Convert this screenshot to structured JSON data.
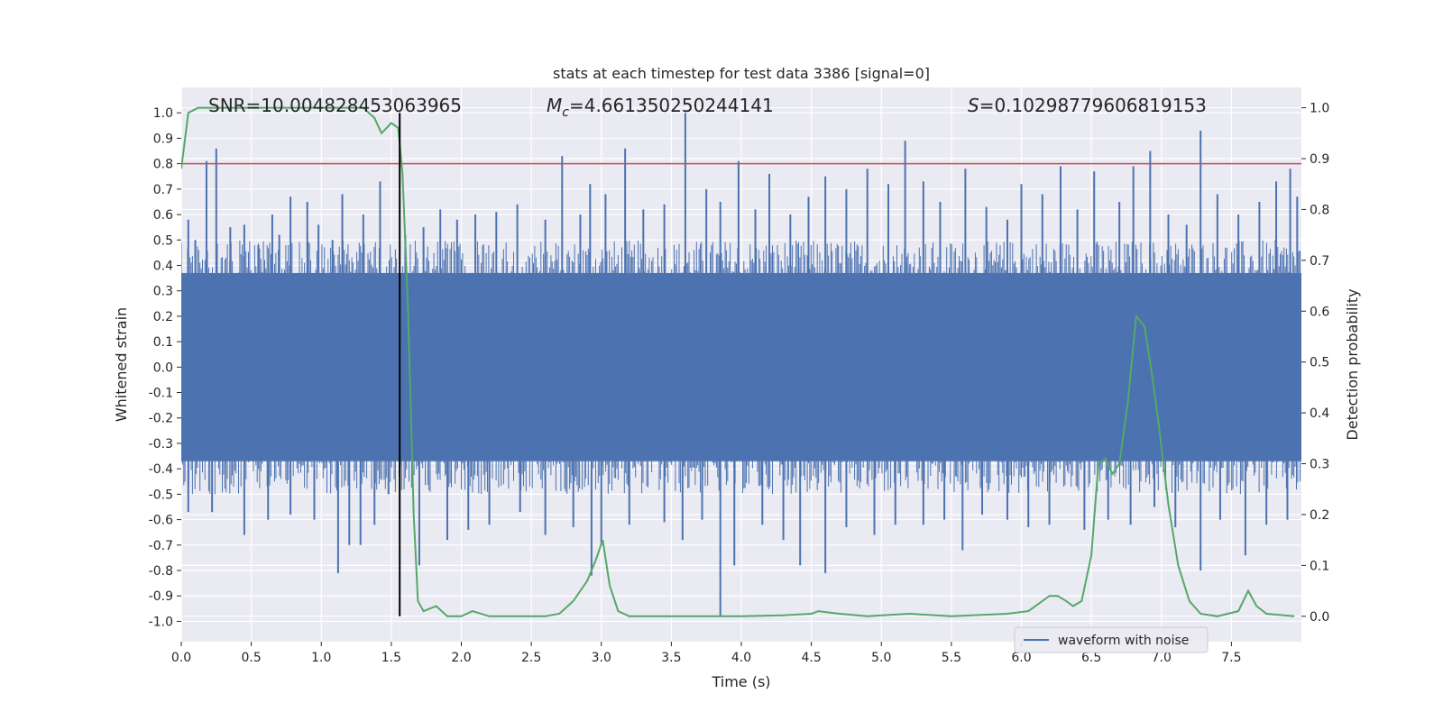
{
  "chart_data": {
    "type": "line",
    "title": "stats at each timestep for test data 3386 [signal=0]",
    "xlabel": "Time (s)",
    "ylabel_left": "Whitened strain",
    "ylabel_right": "Detection probability",
    "xlim": [
      0.0,
      8.0
    ],
    "ylim_left": [
      -1.08,
      1.1
    ],
    "ylim_right": [
      -0.05,
      1.04
    ],
    "x_ticks": [
      "0.0",
      "0.5",
      "1.0",
      "1.5",
      "2.0",
      "2.5",
      "3.0",
      "3.5",
      "4.0",
      "4.5",
      "5.0",
      "5.5",
      "6.0",
      "6.5",
      "7.0",
      "7.5"
    ],
    "x_tick_values": [
      0.0,
      0.5,
      1.0,
      1.5,
      2.0,
      2.5,
      3.0,
      3.5,
      4.0,
      4.5,
      5.0,
      5.5,
      6.0,
      6.5,
      7.0,
      7.5
    ],
    "y_left_ticks": [
      "1.0",
      "0.9",
      "0.8",
      "0.7",
      "0.6",
      "0.5",
      "0.4",
      "0.3",
      "0.2",
      "0.1",
      "0.0",
      "-0.1",
      "-0.2",
      "-0.3",
      "-0.4",
      "-0.5",
      "-0.6",
      "-0.7",
      "-0.8",
      "-0.9",
      "-1.0"
    ],
    "y_left_tick_values": [
      1.0,
      0.9,
      0.8,
      0.7,
      0.6,
      0.5,
      0.4,
      0.3,
      0.2,
      0.1,
      0.0,
      -0.1,
      -0.2,
      -0.3,
      -0.4,
      -0.5,
      -0.6,
      -0.7,
      -0.8,
      -0.9,
      -1.0
    ],
    "y_right_ticks": [
      "1.0",
      "0.9",
      "0.8",
      "0.7",
      "0.6",
      "0.5",
      "0.4",
      "0.3",
      "0.2",
      "0.1",
      "0.0"
    ],
    "y_right_tick_values": [
      1.0,
      0.9,
      0.8,
      0.7,
      0.6,
      0.5,
      0.4,
      0.3,
      0.2,
      0.1,
      0.0
    ],
    "annotations": {
      "snr": "SNR=10.004828453063965",
      "mc_symbol": "M",
      "mc_sub": "c",
      "mc_value": "=4.661350250244141",
      "s_symbol": "S",
      "s_value": "=0.10298779606819153"
    },
    "legend": [
      {
        "label": "waveform with noise",
        "color": "#4c72b0"
      }
    ],
    "waveform": {
      "name": "waveform with noise",
      "axis": "left",
      "color": "#4c72b0",
      "fill_band_low": -0.37,
      "fill_band_high": 0.37,
      "spikes_up": [
        [
          0.05,
          0.58
        ],
        [
          0.1,
          0.5
        ],
        [
          0.18,
          0.81
        ],
        [
          0.25,
          0.86
        ],
        [
          0.35,
          0.55
        ],
        [
          0.45,
          0.56
        ],
        [
          0.55,
          0.48
        ],
        [
          0.65,
          0.6
        ],
        [
          0.7,
          0.52
        ],
        [
          0.78,
          0.67
        ],
        [
          0.9,
          0.65
        ],
        [
          0.98,
          0.56
        ],
        [
          1.08,
          0.5
        ],
        [
          1.15,
          0.68
        ],
        [
          1.3,
          0.6
        ],
        [
          1.42,
          0.73
        ],
        [
          1.6,
          0.52
        ],
        [
          1.73,
          0.55
        ],
        [
          1.85,
          0.62
        ],
        [
          1.97,
          0.58
        ],
        [
          2.1,
          0.6
        ],
        [
          2.25,
          0.61
        ],
        [
          2.4,
          0.64
        ],
        [
          2.6,
          0.58
        ],
        [
          2.72,
          0.83
        ],
        [
          2.85,
          0.6
        ],
        [
          2.92,
          0.72
        ],
        [
          3.03,
          0.68
        ],
        [
          3.17,
          0.86
        ],
        [
          3.3,
          0.62
        ],
        [
          3.45,
          0.64
        ],
        [
          3.6,
          1.0
        ],
        [
          3.75,
          0.7
        ],
        [
          3.85,
          0.65
        ],
        [
          3.98,
          0.81
        ],
        [
          4.1,
          0.62
        ],
        [
          4.2,
          0.76
        ],
        [
          4.35,
          0.6
        ],
        [
          4.48,
          0.67
        ],
        [
          4.6,
          0.75
        ],
        [
          4.75,
          0.7
        ],
        [
          4.9,
          0.78
        ],
        [
          5.05,
          0.72
        ],
        [
          5.17,
          0.89
        ],
        [
          5.3,
          0.73
        ],
        [
          5.42,
          0.65
        ],
        [
          5.6,
          0.78
        ],
        [
          5.75,
          0.63
        ],
        [
          5.9,
          0.58
        ],
        [
          6.0,
          0.72
        ],
        [
          6.15,
          0.68
        ],
        [
          6.28,
          0.79
        ],
        [
          6.4,
          0.62
        ],
        [
          6.52,
          0.77
        ],
        [
          6.7,
          0.65
        ],
        [
          6.8,
          0.79
        ],
        [
          6.92,
          0.85
        ],
        [
          7.05,
          0.6
        ],
        [
          7.18,
          0.56
        ],
        [
          7.28,
          0.93
        ],
        [
          7.4,
          0.68
        ],
        [
          7.55,
          0.6
        ],
        [
          7.7,
          0.65
        ],
        [
          7.82,
          0.73
        ],
        [
          7.92,
          0.78
        ],
        [
          7.97,
          0.67
        ]
      ],
      "spikes_down": [
        [
          0.05,
          -0.57
        ],
        [
          0.22,
          -0.57
        ],
        [
          0.45,
          -0.66
        ],
        [
          0.62,
          -0.6
        ],
        [
          0.78,
          -0.58
        ],
        [
          0.95,
          -0.6
        ],
        [
          1.12,
          -0.81
        ],
        [
          1.2,
          -0.7
        ],
        [
          1.28,
          -0.7
        ],
        [
          1.38,
          -0.62
        ],
        [
          1.48,
          -0.5
        ],
        [
          1.7,
          -0.78
        ],
        [
          1.9,
          -0.68
        ],
        [
          2.05,
          -0.64
        ],
        [
          2.2,
          -0.62
        ],
        [
          2.42,
          -0.57
        ],
        [
          2.6,
          -0.66
        ],
        [
          2.8,
          -0.63
        ],
        [
          2.93,
          -0.82
        ],
        [
          3.0,
          -0.7
        ],
        [
          3.2,
          -0.62
        ],
        [
          3.45,
          -0.61
        ],
        [
          3.58,
          -0.68
        ],
        [
          3.72,
          -0.6
        ],
        [
          3.85,
          -0.98
        ],
        [
          3.95,
          -0.78
        ],
        [
          4.15,
          -0.62
        ],
        [
          4.3,
          -0.68
        ],
        [
          4.42,
          -0.78
        ],
        [
          4.6,
          -0.81
        ],
        [
          4.75,
          -0.63
        ],
        [
          4.95,
          -0.66
        ],
        [
          5.1,
          -0.62
        ],
        [
          5.3,
          -0.62
        ],
        [
          5.45,
          -0.6
        ],
        [
          5.58,
          -0.72
        ],
        [
          5.72,
          -0.58
        ],
        [
          5.9,
          -0.6
        ],
        [
          6.05,
          -0.63
        ],
        [
          6.2,
          -0.62
        ],
        [
          6.45,
          -0.64
        ],
        [
          6.62,
          -0.6
        ],
        [
          6.78,
          -0.62
        ],
        [
          6.95,
          -0.55
        ],
        [
          7.1,
          -0.63
        ],
        [
          7.28,
          -0.8
        ],
        [
          7.42,
          -0.6
        ],
        [
          7.6,
          -0.74
        ],
        [
          7.75,
          -0.62
        ],
        [
          7.9,
          -0.6
        ]
      ]
    },
    "detection_probability": {
      "axis": "right",
      "color": "#55a868",
      "points": [
        [
          0.0,
          0.88
        ],
        [
          0.05,
          0.99
        ],
        [
          0.12,
          1.0
        ],
        [
          0.5,
          1.0
        ],
        [
          1.0,
          1.0
        ],
        [
          1.3,
          1.0
        ],
        [
          1.38,
          0.98
        ],
        [
          1.43,
          0.95
        ],
        [
          1.5,
          0.97
        ],
        [
          1.55,
          0.96
        ],
        [
          1.58,
          0.87
        ],
        [
          1.62,
          0.6
        ],
        [
          1.66,
          0.2
        ],
        [
          1.69,
          0.03
        ],
        [
          1.73,
          0.01
        ],
        [
          1.82,
          0.02
        ],
        [
          1.9,
          0.0
        ],
        [
          2.0,
          0.0
        ],
        [
          2.08,
          0.01
        ],
        [
          2.2,
          0.0
        ],
        [
          2.4,
          0.0
        ],
        [
          2.6,
          0.0
        ],
        [
          2.7,
          0.005
        ],
        [
          2.8,
          0.03
        ],
        [
          2.9,
          0.07
        ],
        [
          2.96,
          0.11
        ],
        [
          3.01,
          0.15
        ],
        [
          3.06,
          0.06
        ],
        [
          3.12,
          0.01
        ],
        [
          3.2,
          0.0
        ],
        [
          3.4,
          0.0
        ],
        [
          3.6,
          0.0
        ],
        [
          3.8,
          0.0
        ],
        [
          4.0,
          0.0
        ],
        [
          4.3,
          0.002
        ],
        [
          4.5,
          0.005
        ],
        [
          4.55,
          0.01
        ],
        [
          4.7,
          0.005
        ],
        [
          4.9,
          0.0
        ],
        [
          5.2,
          0.005
        ],
        [
          5.5,
          0.0
        ],
        [
          5.9,
          0.005
        ],
        [
          6.05,
          0.01
        ],
        [
          6.2,
          0.04
        ],
        [
          6.26,
          0.04
        ],
        [
          6.32,
          0.03
        ],
        [
          6.37,
          0.02
        ],
        [
          6.43,
          0.03
        ],
        [
          6.5,
          0.12
        ],
        [
          6.55,
          0.3
        ],
        [
          6.6,
          0.31
        ],
        [
          6.65,
          0.28
        ],
        [
          6.7,
          0.3
        ],
        [
          6.76,
          0.42
        ],
        [
          6.82,
          0.59
        ],
        [
          6.88,
          0.57
        ],
        [
          6.93,
          0.48
        ],
        [
          6.98,
          0.38
        ],
        [
          7.05,
          0.22
        ],
        [
          7.12,
          0.1
        ],
        [
          7.2,
          0.03
        ],
        [
          7.28,
          0.005
        ],
        [
          7.4,
          0.0
        ],
        [
          7.55,
          0.01
        ],
        [
          7.62,
          0.05
        ],
        [
          7.68,
          0.02
        ],
        [
          7.75,
          0.005
        ],
        [
          7.95,
          0.0
        ]
      ]
    },
    "threshold_line": {
      "axis": "left",
      "value": 0.8,
      "color": "#c44e52"
    },
    "marker_line": {
      "x": 1.56,
      "color": "#000000"
    },
    "grid": true,
    "legend_position": "lower-right"
  }
}
